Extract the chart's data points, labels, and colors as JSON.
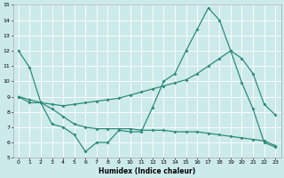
{
  "xlabel": "Humidex (Indice chaleur)",
  "xlim": [
    -0.5,
    23.5
  ],
  "ylim": [
    5,
    15
  ],
  "yticks": [
    5,
    6,
    7,
    8,
    9,
    10,
    11,
    12,
    13,
    14,
    15
  ],
  "xticks": [
    0,
    1,
    2,
    3,
    4,
    5,
    6,
    7,
    8,
    9,
    10,
    11,
    12,
    13,
    14,
    15,
    16,
    17,
    18,
    19,
    20,
    21,
    22,
    23
  ],
  "line_color": "#2e8b7a",
  "bg_color": "#cdeaea",
  "grid_color": "#ffffff",
  "series0_x": [
    0,
    1,
    2,
    3,
    4,
    5,
    6,
    7,
    8,
    9,
    10,
    11,
    12,
    13,
    14,
    15,
    16,
    17,
    18,
    19,
    20,
    21,
    22,
    23
  ],
  "series0_y": [
    12.0,
    10.9,
    8.6,
    7.2,
    7.0,
    6.5,
    5.4,
    6.0,
    6.0,
    6.8,
    6.7,
    6.7,
    8.3,
    10.0,
    10.5,
    12.0,
    13.4,
    14.8,
    14.0,
    12.0,
    9.9,
    8.2,
    6.0,
    5.7
  ],
  "series1_x": [
    0,
    1,
    2,
    3,
    4,
    5,
    6,
    7,
    8,
    9,
    10,
    11,
    12,
    13,
    14,
    15,
    16,
    17,
    18,
    19,
    20,
    21,
    22,
    23
  ],
  "series1_y": [
    9.0,
    8.8,
    8.6,
    8.5,
    8.4,
    8.5,
    8.6,
    8.7,
    8.8,
    8.9,
    9.1,
    9.3,
    9.5,
    9.7,
    9.9,
    10.1,
    10.5,
    11.0,
    11.5,
    12.0,
    11.5,
    10.5,
    8.5,
    7.8
  ],
  "series2_x": [
    0,
    1,
    2,
    3,
    4,
    5,
    6,
    7,
    8,
    9,
    10,
    11,
    12,
    13,
    14,
    15,
    16,
    17,
    18,
    19,
    20,
    21,
    22,
    23
  ],
  "series2_y": [
    9.0,
    8.6,
    8.6,
    8.2,
    7.7,
    7.2,
    7.0,
    6.9,
    6.9,
    6.9,
    6.9,
    6.8,
    6.8,
    6.8,
    6.7,
    6.7,
    6.7,
    6.6,
    6.5,
    6.4,
    6.3,
    6.2,
    6.1,
    5.8
  ]
}
